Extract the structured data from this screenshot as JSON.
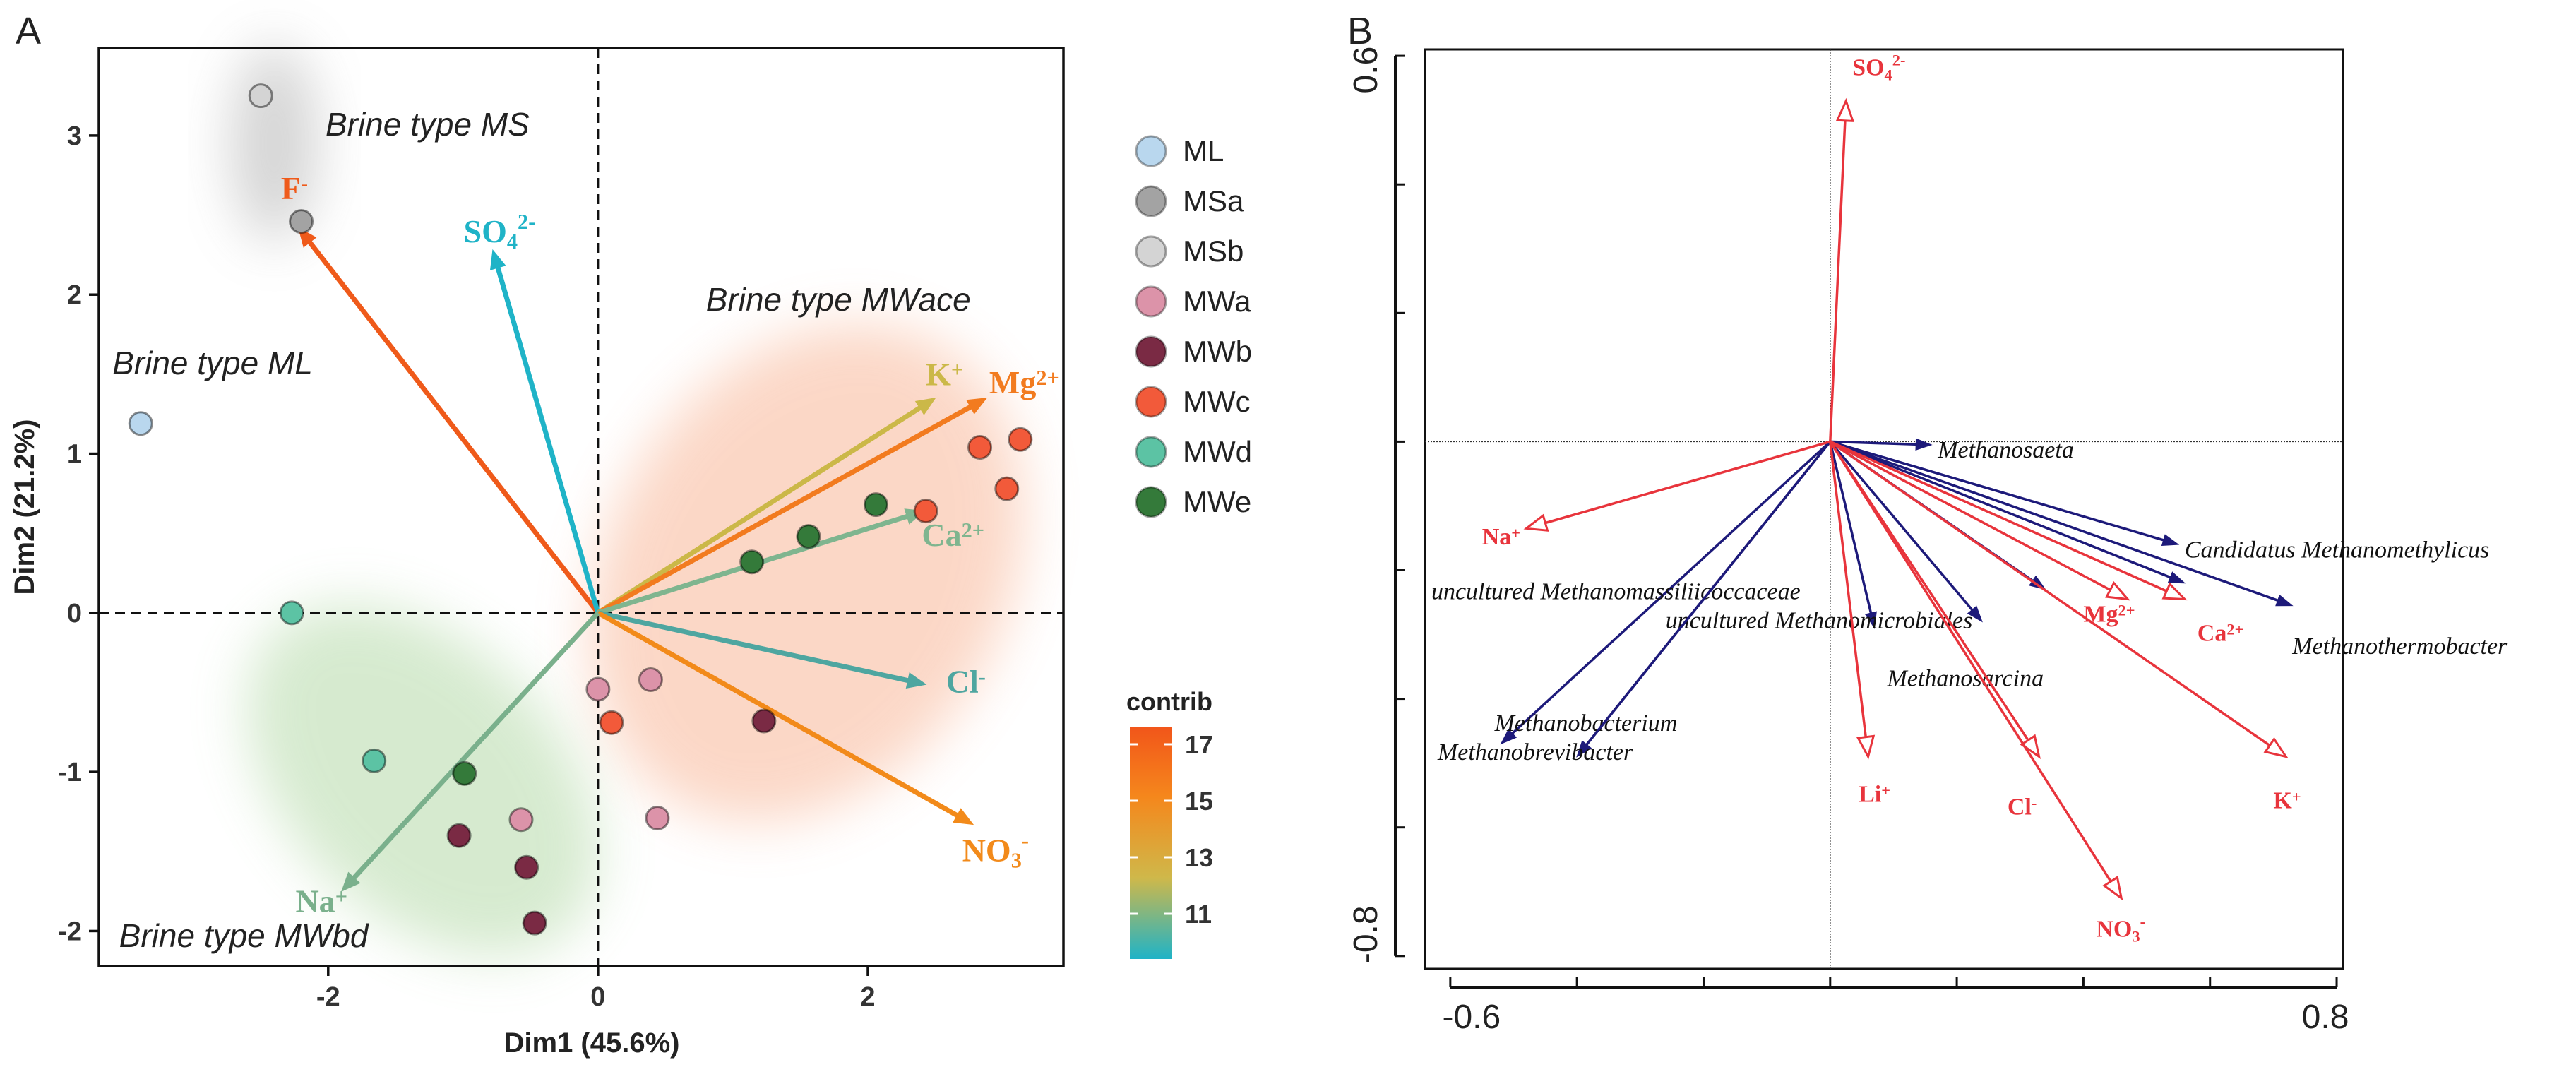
{
  "chart_data": [
    {
      "panel": "A",
      "type": "scatter",
      "subtype": "PCA biplot",
      "xlabel": "Dim1 (45.6%)",
      "ylabel": "Dim2 (21.2%)",
      "xlim": [
        -3.7,
        3.45
      ],
      "ylim": [
        -2.22,
        3.55
      ],
      "xticks": [
        -2,
        0,
        2
      ],
      "yticks": [
        -2,
        -1,
        0,
        1,
        2,
        3
      ],
      "reference_lines": {
        "x": 0,
        "y": 0,
        "style": "dashed"
      },
      "legend": {
        "position": "right",
        "groups": [
          {
            "name": "ML",
            "color": "#b9d7ee"
          },
          {
            "name": "MSa",
            "color": "#a3a3a3"
          },
          {
            "name": "MSb",
            "color": "#d4d4d4"
          },
          {
            "name": "MWa",
            "color": "#dc93a9"
          },
          {
            "name": "MWb",
            "color": "#7a2a44"
          },
          {
            "name": "MWc",
            "color": "#f25a3a"
          },
          {
            "name": "MWd",
            "color": "#5cc3a4"
          },
          {
            "name": "MWe",
            "color": "#347a3a"
          }
        ]
      },
      "colorbar": {
        "title": "contrib",
        "min": 9.4,
        "max": 17.6,
        "ticks": [
          "11",
          "13",
          "15",
          "17"
        ],
        "colors": [
          "#1fb3c7",
          "#cfb84a",
          "#f5871c",
          "#f2561a"
        ]
      },
      "ellipses": [
        {
          "label": "Brine type MS",
          "color": "#9a9a9a",
          "cx": -2.4,
          "cy": 2.95,
          "rx": 0.32,
          "ry": 0.62,
          "angle": 0
        },
        {
          "label": "Brine type ML",
          "color": "#b9d7ee",
          "cx": -3.4,
          "cy": 1.2,
          "rx": 0,
          "ry": 0,
          "angle": 0
        },
        {
          "label": "Brine type MWace",
          "color": "#f7a27a",
          "cx": 1.55,
          "cy": 0.25,
          "rx": 1.95,
          "ry": 1.25,
          "angle": 60
        },
        {
          "label": "Brine type MWbd",
          "color": "#9fcf8f",
          "cx": -1.3,
          "cy": -1.05,
          "rx": 1.55,
          "ry": 0.85,
          "angle": -45
        }
      ],
      "points": [
        {
          "group": "ML",
          "x": -3.39,
          "y": 1.19
        },
        {
          "group": "MSb",
          "x": -2.5,
          "y": 3.25
        },
        {
          "group": "MSa",
          "x": -2.2,
          "y": 2.46
        },
        {
          "group": "MWd",
          "x": -2.27,
          "y": 0.0
        },
        {
          "group": "MWd",
          "x": -1.66,
          "y": -0.93
        },
        {
          "group": "MWe",
          "x": -0.99,
          "y": -1.01
        },
        {
          "group": "MWb",
          "x": -1.03,
          "y": -1.4
        },
        {
          "group": "MWa",
          "x": -0.57,
          "y": -1.3
        },
        {
          "group": "MWb",
          "x": -0.53,
          "y": -1.6
        },
        {
          "group": "MWb",
          "x": -0.47,
          "y": -1.95
        },
        {
          "group": "MWa",
          "x": 0.0,
          "y": -0.48
        },
        {
          "group": "MWc",
          "x": 0.1,
          "y": -0.69
        },
        {
          "group": "MWa",
          "x": 0.39,
          "y": -0.42
        },
        {
          "group": "MWa",
          "x": 0.44,
          "y": -1.29
        },
        {
          "group": "MWb",
          "x": 1.23,
          "y": -0.68
        },
        {
          "group": "MWe",
          "x": 1.14,
          "y": 0.32
        },
        {
          "group": "MWe",
          "x": 1.56,
          "y": 0.48
        },
        {
          "group": "MWe",
          "x": 2.06,
          "y": 0.68
        },
        {
          "group": "MWc",
          "x": 2.43,
          "y": 0.64
        },
        {
          "group": "MWc",
          "x": 2.83,
          "y": 1.04
        },
        {
          "group": "MWc",
          "x": 3.03,
          "y": 0.78
        },
        {
          "group": "MWc",
          "x": 3.13,
          "y": 1.09
        }
      ],
      "vectors": [
        {
          "label": "F",
          "sup": "-",
          "sub": "",
          "x": -2.22,
          "y": 2.42,
          "contrib": 17.0,
          "color": "#ef5a1a",
          "label_color": "#ef5a1a",
          "lx": -2.25,
          "ly": 2.6,
          "anchor": "middle"
        },
        {
          "label": "SO",
          "sup": "2-",
          "sub": "4",
          "x": -0.78,
          "y": 2.28,
          "contrib": 9.6,
          "color": "#1fb3c7",
          "label_color": "#1fb3c7",
          "lx": -0.73,
          "ly": 2.33,
          "anchor": "middle"
        },
        {
          "label": "K",
          "sup": "+",
          "sub": "",
          "x": 2.5,
          "y": 1.35,
          "contrib": 12.3,
          "color": "#cbb848",
          "label_color": "#cbb848",
          "lx": 2.43,
          "ly": 1.43,
          "anchor": "start"
        },
        {
          "label": "Mg",
          "sup": "2+",
          "sub": "",
          "x": 2.88,
          "y": 1.35,
          "contrib": 16.3,
          "color": "#f27b1f",
          "label_color": "#f27b1f",
          "lx": 2.9,
          "ly": 1.38,
          "anchor": "start"
        },
        {
          "label": "Ca",
          "sup": "2+",
          "sub": "",
          "x": 2.42,
          "y": 0.64,
          "contrib": 10.8,
          "color": "#7fb58f",
          "label_color": "#7fb58f",
          "lx": 2.4,
          "ly": 0.42,
          "anchor": "start"
        },
        {
          "label": "Cl",
          "sup": "-",
          "sub": "",
          "x": 2.43,
          "y": -0.45,
          "contrib": 10.0,
          "color": "#4ea6a0",
          "label_color": "#4ea6a0",
          "lx": 2.58,
          "ly": -0.5,
          "anchor": "start"
        },
        {
          "label": "NO",
          "sup": "-",
          "sub": "3",
          "x": 2.78,
          "y": -1.33,
          "contrib": 15.5,
          "color": "#f28a1a",
          "label_color": "#f28a1a",
          "lx": 2.7,
          "ly": -1.56,
          "anchor": "start"
        },
        {
          "label": "Na",
          "sup": "+",
          "sub": "",
          "x": -1.9,
          "y": -1.75,
          "contrib": 10.5,
          "color": "#7ab08c",
          "label_color": "#7ab08c",
          "lx": -2.05,
          "ly": -1.88,
          "anchor": "middle"
        }
      ],
      "annotations": [
        {
          "text": "Brine type MS",
          "x": -2.02,
          "y": 3.0
        },
        {
          "text": "Brine type ML",
          "x": -3.6,
          "y": 1.5
        },
        {
          "text": "Brine type MWace",
          "x": 0.8,
          "y": 1.9
        },
        {
          "text": "Brine type MWbd",
          "x": -3.55,
          "y": -2.1
        }
      ]
    },
    {
      "panel": "B",
      "type": "scatter",
      "subtype": "RDA biplot",
      "xlim": [
        -0.64,
        0.81
      ],
      "ylim": [
        -0.82,
        0.61
      ],
      "tick_labels": {
        "x_min": "-0.6",
        "x_max": "0.8",
        "y_max": "0.6",
        "y_min": "-0.8"
      },
      "env_vectors": [
        {
          "label": "SO",
          "sub": "4",
          "sup": "2-",
          "x": 0.025,
          "y": 0.53,
          "lx": 0.035,
          "ly": 0.57,
          "anchor": "start"
        },
        {
          "label": "Na",
          "sub": "",
          "sup": "+",
          "x": -0.48,
          "y": -0.135,
          "lx": -0.55,
          "ly": -0.16,
          "anchor": "start"
        },
        {
          "label": "Mg",
          "sub": "",
          "sup": "2+",
          "x": 0.47,
          "y": -0.245,
          "lx": 0.4,
          "ly": -0.28,
          "anchor": "start"
        },
        {
          "label": "Ca",
          "sub": "",
          "sup": "2+",
          "x": 0.56,
          "y": -0.245,
          "lx": 0.58,
          "ly": -0.31,
          "anchor": "start"
        },
        {
          "label": "K",
          "sub": "",
          "sup": "+",
          "x": 0.72,
          "y": -0.49,
          "lx": 0.7,
          "ly": -0.57,
          "anchor": "start"
        },
        {
          "label": "Li",
          "sub": "",
          "sup": "+",
          "x": 0.06,
          "y": -0.49,
          "lx": 0.045,
          "ly": -0.56,
          "anchor": "start"
        },
        {
          "label": "Cl",
          "sub": "",
          "sup": "-",
          "x": 0.33,
          "y": -0.49,
          "lx": 0.28,
          "ly": -0.58,
          "anchor": "start"
        },
        {
          "label": "NO",
          "sub": "3",
          "sup": "-",
          "x": 0.46,
          "y": -0.71,
          "lx": 0.42,
          "ly": -0.77,
          "anchor": "start"
        }
      ],
      "taxa_vectors": [
        {
          "label": "Methanosaeta",
          "x": 0.16,
          "y": -0.005,
          "lx": 0.17,
          "ly": -0.025,
          "anchor": "start"
        },
        {
          "label": "Candidatus  Methanomethylicus",
          "x": 0.55,
          "y": -0.16,
          "lx": 0.56,
          "ly": -0.18,
          "anchor": "start"
        },
        {
          "label": "Methanothermobacter",
          "x": 0.73,
          "y": -0.255,
          "lx": 0.73,
          "ly": -0.33,
          "anchor": "start"
        },
        {
          "label": "uncultured  Methanomassiliicoccaceae",
          "x": -0.52,
          "y": -0.47,
          "lx": -0.63,
          "ly": -0.245,
          "anchor": "start"
        },
        {
          "label": "uncultured  Methanomicrobiales",
          "x": 0.07,
          "y": -0.29,
          "lx": -0.26,
          "ly": -0.29,
          "anchor": "start"
        },
        {
          "label": "Methanosarcina",
          "x": 0.24,
          "y": -0.28,
          "lx": 0.09,
          "ly": -0.38,
          "anchor": "start"
        },
        {
          "label": "Methanobacterium",
          "x": -0.4,
          "y": -0.49,
          "lx": -0.53,
          "ly": -0.45,
          "anchor": "start"
        },
        {
          "label": "Methanobrevibacter",
          "x": -0.4,
          "y": -0.49,
          "lx": -0.62,
          "ly": -0.495,
          "anchor": "start"
        },
        {
          "label": "",
          "x": 0.34,
          "y": -0.23
        },
        {
          "label": "",
          "x": 0.56,
          "y": -0.22
        }
      ]
    }
  ],
  "panel_labels": {
    "a": "A",
    "b": "B"
  }
}
